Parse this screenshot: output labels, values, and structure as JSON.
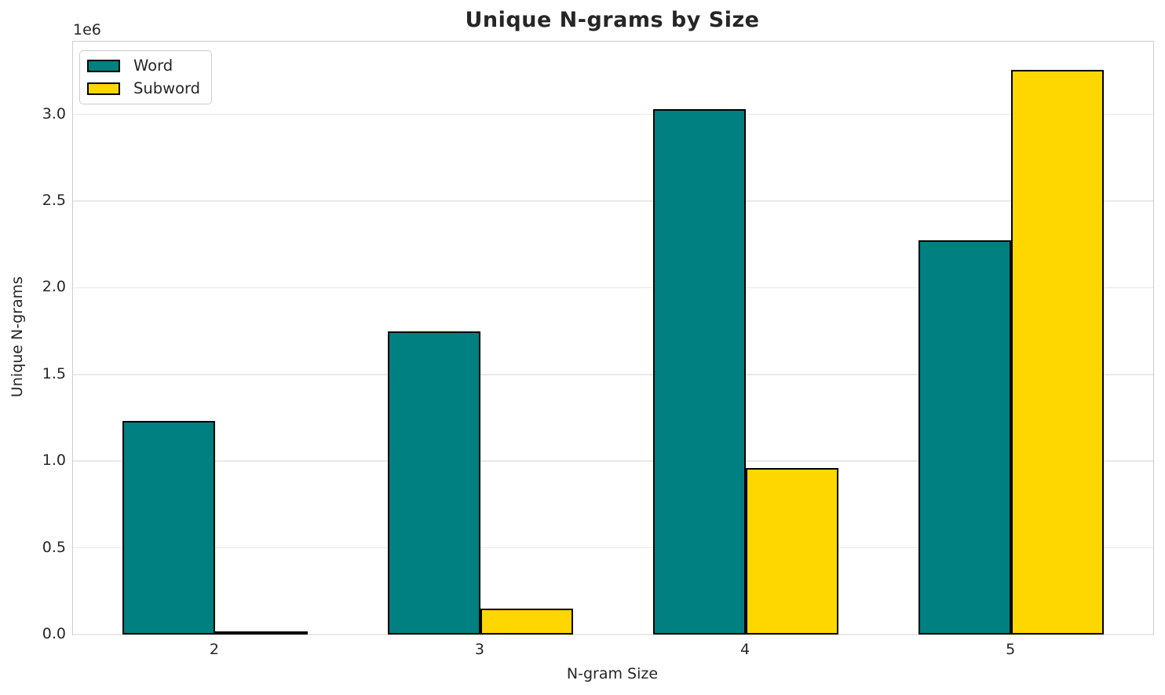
{
  "chart_data": {
    "type": "bar",
    "title": "Unique N-grams by Size",
    "xlabel": "N-gram Size",
    "ylabel": "Unique N-grams",
    "y_offset_text": "1e6",
    "categories": [
      "2",
      "3",
      "4",
      "5"
    ],
    "x_positions": [
      2,
      3,
      4,
      5
    ],
    "series": [
      {
        "name": "Word",
        "color": "#008080",
        "values": [
          1230000,
          1750000,
          3030000,
          2275000
        ]
      },
      {
        "name": "Subword",
        "color": "#FFD700",
        "values": [
          15000,
          150000,
          960000,
          3255000
        ]
      }
    ],
    "bar_edge_color": "#000000",
    "bar_width_data_units": 0.35,
    "xlim": [
      1.465,
      5.535
    ],
    "ylim": [
      0,
      3420000
    ],
    "yticks": [
      {
        "label": "0.0",
        "value": 0
      },
      {
        "label": "0.5",
        "value": 500000
      },
      {
        "label": "1.0",
        "value": 1000000
      },
      {
        "label": "1.5",
        "value": 1500000
      },
      {
        "label": "2.0",
        "value": 2000000
      },
      {
        "label": "2.5",
        "value": 2500000
      },
      {
        "label": "3.0",
        "value": 3000000
      }
    ],
    "grid": "horizontal",
    "legend_position": "upper-left",
    "text_color": "#262626",
    "grid_color": "#e9e9e9",
    "spine_color": "#cdcdcd",
    "background_color": "#ffffff"
  }
}
